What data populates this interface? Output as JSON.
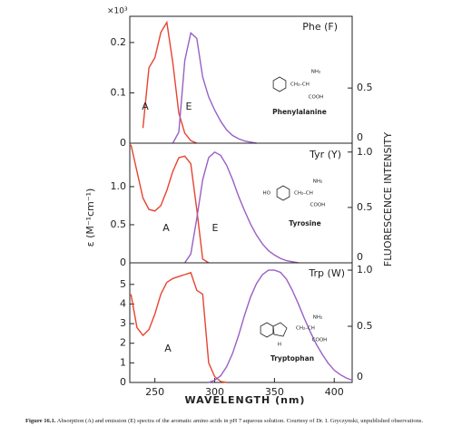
{
  "figure": {
    "y_multiplier": "×10³",
    "ylabel": "ε (M⁻¹cm⁻¹)",
    "y2label": "FLUORESCENCE INTENSITY",
    "xlabel": "WAVELENGTH (nm)",
    "caption_label": "Figure 16.1.",
    "caption": "Absorption (A) and emission (E) spectra of the aromatic amino acids in pH 7 aqueous solution. Courtesy of Dr. I. Gryczynski, unpublished observations."
  },
  "chart_data": [
    {
      "type": "line",
      "title": "Phe (F)",
      "annotations": [
        "A",
        "E"
      ],
      "molecule": "Phenylalanine",
      "structure_labels": [
        "NH₂",
        "CH₂–CH",
        "COOH"
      ],
      "x": [
        240,
        245,
        250,
        255,
        260,
        265,
        270,
        275,
        280,
        285,
        290,
        295,
        300,
        305,
        310,
        315,
        320,
        325,
        330,
        335
      ],
      "series": [
        {
          "name": "A",
          "color": "#e8432e",
          "values": [
            0.03,
            0.15,
            0.17,
            0.22,
            0.24,
            0.16,
            0.06,
            0.02,
            0.005,
            0,
            null,
            null,
            null,
            null,
            null,
            null,
            null,
            null,
            null,
            null
          ]
        },
        {
          "name": "E",
          "color": "#9a5fc4",
          "axis": "y2",
          "values": [
            null,
            null,
            null,
            null,
            null,
            0,
            0.1,
            0.75,
            1.0,
            0.95,
            0.6,
            0.42,
            0.3,
            0.2,
            0.12,
            0.07,
            0.04,
            0.02,
            0.01,
            0
          ]
        }
      ],
      "xlim": [
        229,
        415
      ],
      "ylim": [
        0,
        0.252
      ],
      "yticks": [
        0,
        0.1,
        0.2
      ],
      "y2lim": [
        0,
        1.15
      ],
      "y2ticks": [
        0,
        0.5
      ]
    },
    {
      "type": "line",
      "title": "Tyr (Y)",
      "annotations": [
        "A",
        "E"
      ],
      "molecule": "Tyrosine",
      "structure_labels": [
        "NH₂",
        "HO",
        "CH₂–CH",
        "COOH"
      ],
      "x": [
        230,
        235,
        240,
        245,
        250,
        255,
        260,
        265,
        270,
        275,
        280,
        285,
        290,
        295,
        300,
        305,
        310,
        315,
        320,
        325,
        330,
        335,
        340,
        345,
        350,
        355,
        360,
        365,
        370
      ],
      "series": [
        {
          "name": "A",
          "color": "#e8432e",
          "values": [
            1.55,
            1.2,
            0.85,
            0.7,
            0.68,
            0.75,
            0.95,
            1.2,
            1.38,
            1.4,
            1.3,
            0.7,
            0.05,
            0,
            null,
            null,
            null,
            null,
            null,
            null,
            null,
            null,
            null,
            null,
            null,
            null,
            null,
            null,
            null
          ]
        },
        {
          "name": "E",
          "color": "#9a5fc4",
          "axis": "y2",
          "values": [
            null,
            null,
            null,
            null,
            null,
            null,
            null,
            null,
            null,
            0,
            0.08,
            0.4,
            0.75,
            0.95,
            1.0,
            0.97,
            0.88,
            0.75,
            0.6,
            0.47,
            0.35,
            0.25,
            0.17,
            0.11,
            0.07,
            0.04,
            0.02,
            0.01,
            0
          ]
        }
      ],
      "xlim": [
        229,
        415
      ],
      "ylim": [
        0,
        1.57
      ],
      "yticks": [
        0,
        0.5,
        {
          "value": 1,
          "label": "1.0"
        }
      ],
      "y2lim": [
        0,
        1.08
      ],
      "y2ticks": [
        0,
        0.5,
        {
          "value": 1,
          "label": "1.0"
        }
      ]
    },
    {
      "type": "line",
      "title": "Trp (W)",
      "annotations": [
        "A"
      ],
      "molecule": "Tryptophan",
      "structure_labels": [
        "NH₂",
        "CH₂–CH",
        "H",
        "COOH"
      ],
      "x": [
        230,
        235,
        240,
        245,
        250,
        255,
        260,
        265,
        270,
        275,
        280,
        285,
        290,
        295,
        300,
        305,
        310,
        315,
        320,
        325,
        330,
        335,
        340,
        345,
        350,
        355,
        360,
        365,
        370,
        375,
        380,
        385,
        390,
        395,
        400,
        405,
        410,
        415
      ],
      "series": [
        {
          "name": "A",
          "color": "#e8432e",
          "values": [
            4.5,
            2.8,
            2.4,
            2.7,
            3.5,
            4.5,
            5.1,
            5.3,
            5.4,
            5.5,
            5.6,
            4.7,
            4.5,
            1.0,
            0.3,
            0.05,
            0,
            null,
            null,
            null,
            null,
            null,
            null,
            null,
            null,
            null,
            null,
            null,
            null,
            null,
            null,
            null,
            null,
            null,
            null,
            null,
            null,
            null
          ]
        },
        {
          "name": "E",
          "color": "#9a5fc4",
          "axis": "y2",
          "values": [
            null,
            null,
            null,
            null,
            null,
            null,
            null,
            null,
            null,
            null,
            null,
            null,
            null,
            0,
            0.02,
            0.06,
            0.14,
            0.26,
            0.42,
            0.6,
            0.76,
            0.88,
            0.96,
            1.0,
            1.0,
            0.98,
            0.92,
            0.82,
            0.7,
            0.57,
            0.45,
            0.34,
            0.25,
            0.17,
            0.11,
            0.07,
            0.04,
            0.02
          ]
        }
      ],
      "xlim": [
        229,
        415
      ],
      "xticks": [
        250,
        300,
        350,
        400
      ],
      "ylim": [
        0,
        6.1
      ],
      "yticks": [
        0,
        1,
        2,
        3,
        4,
        5
      ],
      "y2lim": [
        0,
        1.065
      ],
      "y2ticks": [
        0,
        0.5,
        {
          "value": 1,
          "label": "1.0"
        }
      ]
    }
  ]
}
